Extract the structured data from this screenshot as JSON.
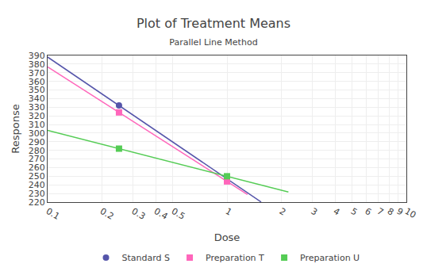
{
  "chart_data": {
    "type": "line",
    "title": "Plot of Treatment Means",
    "subtitle": "Parallel Line Method",
    "x_label": "Dose",
    "y_label": "Response",
    "log": "x",
    "xlim": [
      0.1,
      10
    ],
    "xticks": [
      0.1,
      0.2,
      0.3,
      0.4,
      0.5,
      1,
      2,
      3,
      4,
      5,
      6,
      7,
      8,
      9,
      10
    ],
    "ylim": [
      220,
      390
    ],
    "yticks": [
      220,
      230,
      240,
      250,
      260,
      270,
      280,
      290,
      300,
      310,
      320,
      330,
      340,
      350,
      360,
      370,
      380,
      390
    ],
    "grid": true,
    "legend": "bottom",
    "series": [
      {
        "name": "Standard S",
        "color": "#5555aa",
        "marker": "circle",
        "x": [
          0.25,
          1.0
        ],
        "values": [
          332,
          247
        ],
        "fit": {
          "x": [
            0.1,
            1.55
          ],
          "values": [
            388.18,
            220.13
          ]
        }
      },
      {
        "name": "Preparation T",
        "color": "#ff66bb",
        "marker": "square",
        "x": [
          0.25,
          1.0
        ],
        "values": [
          324,
          244
        ],
        "fit": {
          "x": [
            0.1,
            1.3
          ],
          "values": [
            376.88,
            228.86
          ]
        }
      },
      {
        "name": "Preparation U",
        "color": "#55cc55",
        "marker": "square",
        "x": [
          0.25,
          1.0
        ],
        "values": [
          282,
          250
        ],
        "fit": {
          "x": [
            0.1,
            2.2
          ],
          "values": [
            303.15,
            231.8
          ]
        }
      }
    ]
  }
}
